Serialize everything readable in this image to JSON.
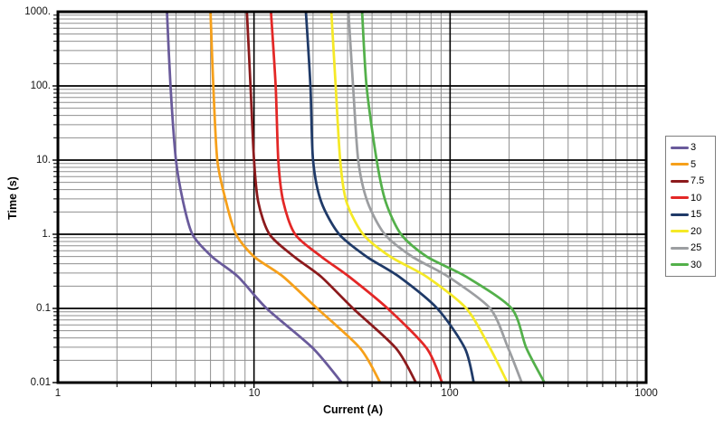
{
  "chart_data": {
    "type": "line",
    "title": "",
    "xlabel": "Current (A)",
    "ylabel": "Time (s)",
    "x_scale": "log",
    "y_scale": "log",
    "xlim": [
      1,
      1000
    ],
    "ylim": [
      0.01,
      1000
    ],
    "x_tick_labels": [
      "1",
      "10",
      "100",
      "1000"
    ],
    "y_tick_labels": [
      "1000.",
      "100.",
      "10.",
      "1.",
      "0.1",
      "0.01"
    ],
    "grid": "log major and minor gridlines on",
    "legend_position": "right",
    "colors": {
      "major_grid": "#000000",
      "minor_grid": "#8f8f8f",
      "border": "#000000",
      "background": "#ffffff"
    },
    "time_points_s": [
      1000,
      100,
      10,
      2.75,
      1,
      0.5,
      0.267,
      0.1,
      0.029,
      0.01
    ],
    "series": [
      {
        "name": "3",
        "color": "#695a9b",
        "current_a": [
          3.6,
          3.75,
          4.0,
          4.35,
          4.85,
          6.1,
          8.3,
          11.6,
          20.0,
          28.0
        ]
      },
      {
        "name": "5",
        "color": "#f6a01a",
        "current_a": [
          6.0,
          6.2,
          6.5,
          7.2,
          8.1,
          10.0,
          14.1,
          21.0,
          34.8,
          44.0
        ]
      },
      {
        "name": "7.5",
        "color": "#8c1a1c",
        "current_a": [
          9.2,
          9.6,
          10.0,
          10.5,
          12.0,
          16.0,
          22.0,
          32.0,
          53.0,
          67.0
        ]
      },
      {
        "name": "10",
        "color": "#e32726",
        "current_a": [
          12.2,
          12.9,
          13.3,
          14.1,
          16.2,
          22.0,
          30.6,
          48.0,
          76.0,
          91.0
        ]
      },
      {
        "name": "15",
        "color": "#1f3a68",
        "current_a": [
          18.4,
          19.4,
          20.0,
          22.0,
          27.2,
          37.5,
          55.0,
          86.0,
          119.0,
          132.0
        ]
      },
      {
        "name": "20",
        "color": "#f5e926",
        "current_a": [
          24.8,
          26.1,
          27.5,
          29.6,
          36.0,
          49.5,
          76.0,
          121.0,
          160.0,
          196.0
        ]
      },
      {
        "name": "25",
        "color": "#9c9ea1",
        "current_a": [
          30.3,
          32.0,
          34.0,
          37.9,
          46.4,
          64.0,
          98.0,
          160.0,
          198.0,
          232.0
        ]
      },
      {
        "name": "30",
        "color": "#53b04a",
        "current_a": [
          35.6,
          37.5,
          42.2,
          46.9,
          56.2,
          76.0,
          121.0,
          206.0,
          245.0,
          303.0
        ]
      }
    ]
  }
}
